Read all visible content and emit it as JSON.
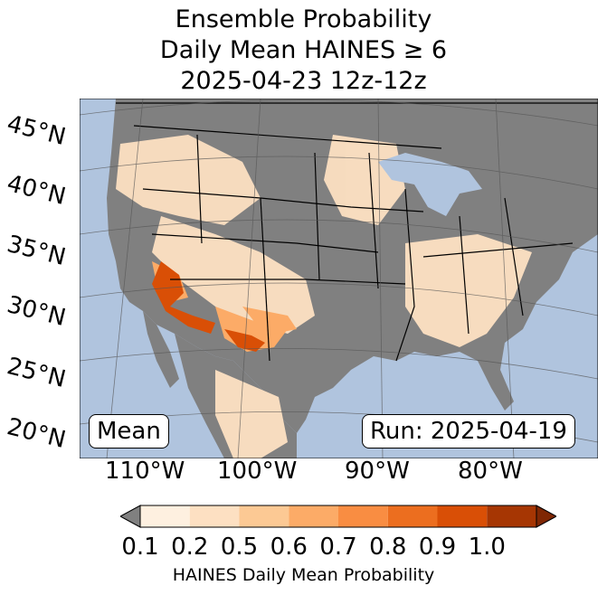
{
  "title": {
    "line1": "Ensemble Probability",
    "line2": "Daily Mean HAINES ≥ 6",
    "line3": "2025-04-23 12z-12z"
  },
  "lat_labels": [
    "45°N",
    "40°N",
    "35°N",
    "30°N",
    "25°N",
    "20°N"
  ],
  "lon_labels": [
    "110°W",
    "100°W",
    "90°W",
    "80°W"
  ],
  "mean_box": "Mean",
  "run_box": "Run: 2025-04-19",
  "colorbar": {
    "ticks": [
      "0.1",
      "0.2",
      "0.5",
      "0.6",
      "0.7",
      "0.8",
      "0.9",
      "1.0"
    ],
    "colors": [
      "#fef0e0",
      "#fde0c2",
      "#fcc994",
      "#fcab67",
      "#f98d42",
      "#ec6e1f",
      "#d94f06",
      "#a63603"
    ],
    "under_color": "#808080",
    "over_color": "#7f2704",
    "label": "HAINES Daily Mean Probability"
  },
  "colors": {
    "ocean": "#b0c4de",
    "land_masked": "#808080",
    "lakes": "#b0c4de"
  }
}
